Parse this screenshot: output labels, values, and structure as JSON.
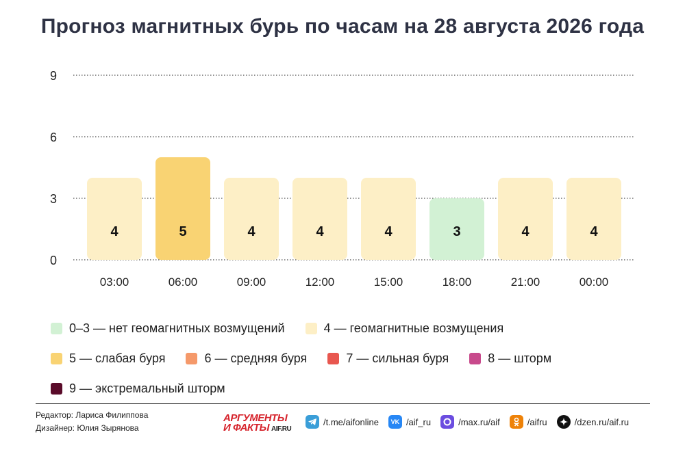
{
  "title": "Прогноз магнитных бурь по часам на 28 августа 2026 года",
  "chart_data": {
    "type": "bar",
    "categories": [
      "03:00",
      "06:00",
      "09:00",
      "12:00",
      "15:00",
      "18:00",
      "21:00",
      "00:00"
    ],
    "values": [
      4,
      5,
      4,
      4,
      4,
      3,
      4,
      4
    ],
    "ylim": [
      0,
      9
    ],
    "yticks": [
      0,
      3,
      6,
      9
    ],
    "grid": true,
    "grid_style": "dotted",
    "data_labels": true,
    "xlabel": "",
    "ylabel": "",
    "level_colors": {
      "0-3": "#d2f1d4",
      "4": "#fdefc6",
      "5": "#f9d373",
      "6": "#f5996a",
      "7": "#e8574f",
      "8": "#c84a8c",
      "9": "#5a0b2a"
    }
  },
  "legend": {
    "items": [
      {
        "label": "0–3 — нет геомагнитных возмущений",
        "color": "#d2f1d4"
      },
      {
        "label": "4 — геомагнитные возмущения",
        "color": "#fdefc6"
      },
      {
        "label": "5 — слабая буря",
        "color": "#f9d373"
      },
      {
        "label": "6 — средняя буря",
        "color": "#f5996a"
      },
      {
        "label": "7 — сильная буря",
        "color": "#e8574f"
      },
      {
        "label": "8 — шторм",
        "color": "#c84a8c"
      },
      {
        "label": "9 — экстремальный шторм",
        "color": "#5a0b2a"
      }
    ]
  },
  "footer": {
    "editor": "Редактор: Лариса Филиппова",
    "designer": "Дизайнер: Юлия Зырянова",
    "logo_top": "АРГУМЕНТЫ",
    "logo_bottom": "И ФАКТЫ",
    "logo_site": "AIF.RU",
    "socials": [
      {
        "icon": "telegram-icon",
        "label": "/t.me/aifonline",
        "color": "#3a9ed8"
      },
      {
        "icon": "vk-icon",
        "label": "/aif_ru",
        "color": "#2787f5"
      },
      {
        "icon": "max-icon",
        "label": "/max.ru/aif",
        "color": "#6b4de0"
      },
      {
        "icon": "odnoklassniki-icon",
        "label": "/aifru",
        "color": "#ee8208"
      },
      {
        "icon": "dzen-icon",
        "label": "/dzen.ru/aif.ru",
        "color": "#111111"
      }
    ]
  }
}
